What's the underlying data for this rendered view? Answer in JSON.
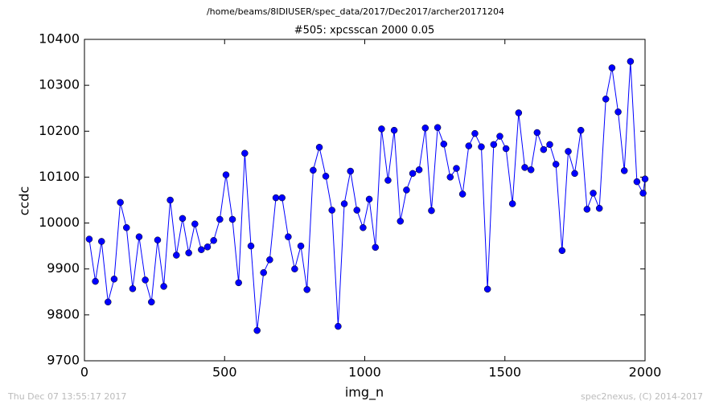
{
  "chart_data": {
    "type": "line",
    "suptitle": "/home/beams/8IDIUSER/spec_data/2017/Dec2017/archer20171204",
    "title": "#505: xpcsscan 2000 0.05",
    "xlabel": "img_n",
    "ylabel": "ccdc",
    "timestamp": "Thu Dec 07 13:55:17 2017",
    "credit": "spec2nexus, (C) 2014-2017",
    "xlim": [
      0,
      2000
    ],
    "xticks": [
      0,
      500,
      1000,
      1500,
      2000
    ],
    "ylim": [
      9700,
      10400
    ],
    "yticks": [
      9700,
      9800,
      9900,
      10000,
      10100,
      10200,
      10300,
      10400
    ],
    "x": [
      17,
      39,
      61,
      84,
      106,
      128,
      150,
      172,
      195,
      217,
      239,
      261,
      283,
      306,
      328,
      350,
      372,
      394,
      417,
      439,
      461,
      483,
      505,
      528,
      550,
      572,
      594,
      616,
      639,
      661,
      683,
      705,
      727,
      750,
      772,
      794,
      816,
      838,
      861,
      883,
      905,
      927,
      949,
      972,
      994,
      1016,
      1038,
      1060,
      1083,
      1105,
      1127,
      1149,
      1171,
      1194,
      1216,
      1238,
      1260,
      1282,
      1305,
      1327,
      1349,
      1371,
      1393,
      1416,
      1438,
      1460,
      1482,
      1504,
      1527,
      1549,
      1571,
      1593,
      1615,
      1638,
      1660,
      1682,
      1704,
      1726,
      1749,
      1771,
      1793,
      1815,
      1837,
      1860,
      1882,
      1904,
      1926,
      1948,
      1971,
      1993,
      2000
    ],
    "series": [
      {
        "color": "#0000ff",
        "values": [
          9965,
          9873,
          9960,
          9828,
          9878,
          10045,
          9990,
          9857,
          9970,
          9876,
          9828,
          9963,
          9862,
          10050,
          9930,
          10010,
          9935,
          9998,
          9942,
          9948,
          9962,
          10008,
          10105,
          10008,
          9870,
          10152,
          9950,
          9766,
          9892,
          9920,
          10055,
          10055,
          9970,
          9900,
          9950,
          9855,
          10115,
          10165,
          10102,
          10028,
          9775,
          10042,
          10113,
          10028,
          9990,
          10052,
          9947,
          10205,
          10093,
          10202,
          10004,
          10072,
          10108,
          10116,
          10207,
          10027,
          10208,
          10172,
          10100,
          10119,
          10063,
          10168,
          10195,
          10166,
          9856,
          10171,
          10189,
          10162,
          10042,
          10240,
          10121,
          10116,
          10197,
          10160,
          10171,
          10128,
          9940,
          10156,
          10108,
          10202,
          10030,
          10065,
          10032,
          10270,
          10338,
          10242,
          10114,
          10352,
          10090,
          10065,
          10096
        ]
      }
    ]
  }
}
